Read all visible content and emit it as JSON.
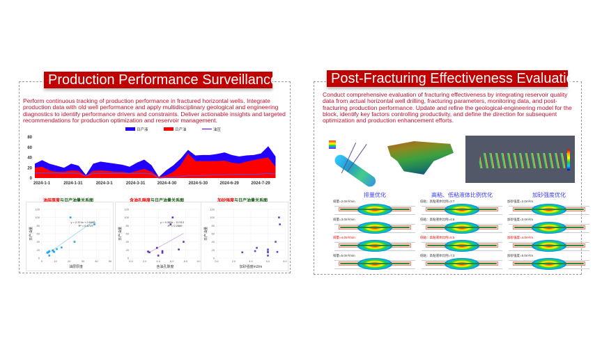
{
  "left": {
    "title": "Production Performance Surveillance",
    "description": "Perform continuous tracking of production performance in fractured horizontal wells. Integrate production data with old well performance and apply multidisciplinary geological and engineering diagnostics to identify performance drivers and constraints. Deliver actionable insights and targeted recommendations for production optimization and reservoir management."
  },
  "right": {
    "title": "Post-Fracturing Effectiveness Evaluation",
    "description": "Conduct comprehensive evaluation of fracturing effectiveness by integrating reservoir quality data from actual horizontal well drilling, fracturing parameters, monitoring data, and post-fracturing production performance. Update and refine the geological-engineering model for the block, identify key factors controlling productivity, and define the direction for subsequent optimization and production enhancement efforts.",
    "columns": [
      {
        "title": "排量优化",
        "items": [
          {
            "label": "排量=2.0m³/min",
            "highlight": false
          },
          {
            "label": "排量=3.0m³/min",
            "highlight": false
          },
          {
            "label": "排量=4.0m³/min",
            "highlight": true
          },
          {
            "label": "排量=5.0m³/min",
            "highlight": false
          }
        ]
      },
      {
        "title": "高粘、低粘液体比例优化",
        "items": [
          {
            "label": "低粘：高粘液体比例=3:7",
            "highlight": false
          },
          {
            "label": "低粘：高粘液体比例=4:6",
            "highlight": false
          },
          {
            "label": "低粘：高粘液体比例=5:5",
            "highlight": true
          },
          {
            "label": "低粘：高粘液体比例=7:3",
            "highlight": false
          }
        ]
      },
      {
        "title": "加砂强度优化",
        "items": [
          {
            "label": "加砂强度=2.0m³/m",
            "highlight": false
          },
          {
            "label": "加砂强度=3.0m³/m",
            "highlight": false
          },
          {
            "label": "加砂强度=4.0m³/m",
            "highlight": true
          },
          {
            "label": "加砂强度=5.0m³/m",
            "highlight": false
          }
        ]
      }
    ]
  },
  "chart_data": [
    {
      "type": "area",
      "title": "",
      "legend": [
        "日产液",
        "日产油",
        "油压"
      ],
      "colors": [
        "#2200ff",
        "#ff0000",
        "#7a3fc0"
      ],
      "ylim": [
        0,
        80
      ],
      "yticks": [
        "0",
        "20",
        "40",
        "60",
        "80"
      ],
      "xticks": [
        "2024-1-1",
        "2024-1-31",
        "2024-3-1",
        "2024-3-31",
        "2024-4-30",
        "2024-5-30",
        "2024-6-29",
        "2024-7-29"
      ],
      "xtick_days": [
        0,
        30,
        60,
        90,
        120,
        150,
        180,
        210
      ],
      "x_step_days": 7,
      "x_max_days": 232,
      "series": [
        {
          "name": "日产液",
          "values": [
            28,
            35,
            28,
            24,
            20,
            28,
            24,
            6,
            28,
            32,
            30,
            28,
            26,
            22,
            30,
            36,
            25,
            2,
            15,
            25,
            38,
            55,
            44,
            45,
            45,
            47,
            50,
            45,
            42,
            44,
            45,
            48,
            62,
            42
          ]
        },
        {
          "name": "日产油",
          "values": [
            20,
            22,
            15,
            12,
            12,
            15,
            14,
            4,
            14,
            15,
            14,
            12,
            12,
            10,
            14,
            18,
            12,
            2,
            5,
            12,
            25,
            48,
            33,
            33,
            33,
            33,
            34,
            30,
            28,
            32,
            35,
            38,
            40,
            22
          ]
        },
        {
          "name": "油压",
          "values": [
            10,
            10,
            10,
            10,
            9,
            10,
            9,
            4,
            9,
            9,
            9,
            9,
            9,
            9,
            9,
            9,
            8,
            0,
            1,
            2,
            3,
            5,
            5,
            5,
            6,
            6,
            6,
            7,
            7,
            7,
            7,
            8,
            9,
            8
          ]
        }
      ]
    },
    {
      "type": "scatter",
      "title_red": "油层厚度",
      "title_rest": "与日产油量关系图",
      "xlabel": "油层厚度",
      "ylabel": "日产油量",
      "xlim": [
        0,
        50
      ],
      "ylim": [
        0,
        120
      ],
      "xticks": [
        "0",
        "10",
        "20",
        "30",
        "40",
        "50"
      ],
      "yticks": [
        "0",
        "20",
        "40",
        "60",
        "80",
        "100",
        "120"
      ],
      "color": "#1eaaf0",
      "trend_color": "#a8dcf5",
      "points": [
        [
          4,
          13
        ],
        [
          4.5,
          14
        ],
        [
          5,
          15
        ],
        [
          5.5,
          17
        ],
        [
          5.5,
          6
        ],
        [
          8,
          19
        ],
        [
          8.5,
          17
        ],
        [
          9,
          15
        ],
        [
          11,
          22
        ],
        [
          14.5,
          26
        ],
        [
          21,
          100
        ],
        [
          24,
          40
        ],
        [
          38.5,
          83
        ]
      ],
      "trend": [
        2.374,
        0.5446
      ],
      "equation": "y = 2.374x + 0.5446",
      "r2": "R² = 0.6729"
    },
    {
      "type": "scatter",
      "title_red": "含油孔隙度",
      "title_rest": "与日产油量关系图",
      "xlabel": "含油孔隙度",
      "ylabel": "日产油量",
      "xlim": [
        0,
        10
      ],
      "ylim": [
        0,
        120
      ],
      "xticks": [
        "0.0",
        "2.0",
        "4.0",
        "6.0",
        "8.0",
        "10.0"
      ],
      "yticks": [
        "0",
        "20",
        "40",
        "60",
        "80",
        "100",
        "120"
      ],
      "color": "#6a2cb8",
      "trend_color": "#cdb4e6",
      "points": [
        [
          2.5,
          16
        ],
        [
          2.7,
          14
        ],
        [
          3.8,
          25
        ],
        [
          4,
          6
        ],
        [
          4.6,
          17
        ],
        [
          4.6,
          13
        ],
        [
          5.8,
          83
        ],
        [
          6.1,
          100
        ],
        [
          7,
          21
        ],
        [
          7.7,
          40
        ]
      ],
      "trend": [
        9.385,
        -11.513
      ],
      "equation": "y = 9.385x - 11.513",
      "r2": "R² = 0.2589"
    },
    {
      "type": "scatter",
      "title_red": "加砂强度",
      "title_rest": "与日产油量关系图",
      "xlabel": "加砂强度m3/m",
      "ylabel": "日产油量",
      "xlim": [
        0,
        8
      ],
      "ylim": [
        0,
        120
      ],
      "xticks": [
        "0.0",
        "2.0",
        "4.0",
        "6.0",
        "8.0"
      ],
      "yticks": [
        "0",
        "20",
        "40",
        "60",
        "80",
        "100",
        "120"
      ],
      "color": "#5a48c8",
      "trend_color": null,
      "points": [
        [
          3,
          14
        ],
        [
          4.5,
          17
        ],
        [
          4.7,
          25
        ],
        [
          6,
          21
        ],
        [
          6,
          16
        ],
        [
          6,
          14
        ],
        [
          6,
          6
        ],
        [
          6.9,
          40
        ],
        [
          7.1,
          15
        ],
        [
          7.3,
          100
        ],
        [
          7.4,
          83
        ]
      ],
      "trend": null,
      "equation": "",
      "r2": ""
    }
  ]
}
